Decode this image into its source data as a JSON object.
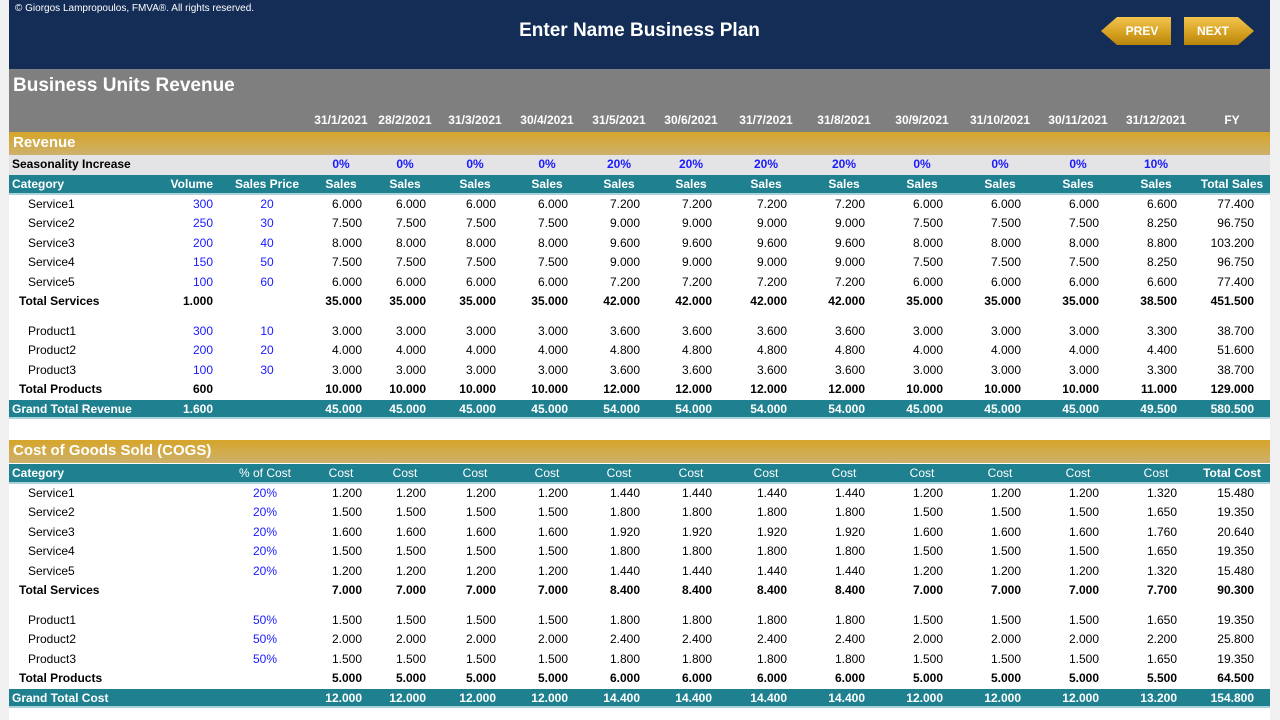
{
  "header": {
    "copyright": "© Giorgos Lampropoulos, FMVA®. All rights reserved.",
    "title": "Enter Name Business Plan",
    "prev_label": "PREV",
    "next_label": "NEXT"
  },
  "page_title": "Business Units Revenue",
  "dates": [
    "31/1/2021",
    "28/2/2021",
    "31/3/2021",
    "30/4/2021",
    "31/5/2021",
    "30/6/2021",
    "31/7/2021",
    "31/8/2021",
    "30/9/2021",
    "31/10/2021",
    "30/11/2021",
    "31/12/2021"
  ],
  "fy_label": "FY",
  "colors": {
    "navy": "#132d56",
    "gray": "#7f7f7f",
    "gold": "#d6a52a",
    "teal": "#1f8090",
    "input_blue": "#1a1aff"
  },
  "revenue": {
    "section_label": "Revenue",
    "seasonality_label": "Seasonality Increase",
    "seasonality": [
      "0%",
      "0%",
      "0%",
      "0%",
      "20%",
      "20%",
      "20%",
      "20%",
      "0%",
      "0%",
      "0%",
      "10%"
    ],
    "header": {
      "category": "Category",
      "volume": "Volume",
      "price": "Sales Price",
      "month": "Sales",
      "total": "Total Sales"
    },
    "services": [
      {
        "name": "Service1",
        "volume": "300",
        "price": "20",
        "values": [
          "6.000",
          "6.000",
          "6.000",
          "6.000",
          "7.200",
          "7.200",
          "7.200",
          "7.200",
          "6.000",
          "6.000",
          "6.000",
          "6.600"
        ],
        "total": "77.400"
      },
      {
        "name": "Service2",
        "volume": "250",
        "price": "30",
        "values": [
          "7.500",
          "7.500",
          "7.500",
          "7.500",
          "9.000",
          "9.000",
          "9.000",
          "9.000",
          "7.500",
          "7.500",
          "7.500",
          "8.250"
        ],
        "total": "96.750"
      },
      {
        "name": "Service3",
        "volume": "200",
        "price": "40",
        "values": [
          "8.000",
          "8.000",
          "8.000",
          "8.000",
          "9.600",
          "9.600",
          "9.600",
          "9.600",
          "8.000",
          "8.000",
          "8.000",
          "8.800"
        ],
        "total": "103.200"
      },
      {
        "name": "Service4",
        "volume": "150",
        "price": "50",
        "values": [
          "7.500",
          "7.500",
          "7.500",
          "7.500",
          "9.000",
          "9.000",
          "9.000",
          "9.000",
          "7.500",
          "7.500",
          "7.500",
          "8.250"
        ],
        "total": "96.750"
      },
      {
        "name": "Service5",
        "volume": "100",
        "price": "60",
        "values": [
          "6.000",
          "6.000",
          "6.000",
          "6.000",
          "7.200",
          "7.200",
          "7.200",
          "7.200",
          "6.000",
          "6.000",
          "6.000",
          "6.600"
        ],
        "total": "77.400"
      }
    ],
    "total_services": {
      "name": "Total Services",
      "volume": "1.000",
      "values": [
        "35.000",
        "35.000",
        "35.000",
        "35.000",
        "42.000",
        "42.000",
        "42.000",
        "42.000",
        "35.000",
        "35.000",
        "35.000",
        "38.500"
      ],
      "total": "451.500"
    },
    "products": [
      {
        "name": "Product1",
        "volume": "300",
        "price": "10",
        "values": [
          "3.000",
          "3.000",
          "3.000",
          "3.000",
          "3.600",
          "3.600",
          "3.600",
          "3.600",
          "3.000",
          "3.000",
          "3.000",
          "3.300"
        ],
        "total": "38.700"
      },
      {
        "name": "Product2",
        "volume": "200",
        "price": "20",
        "values": [
          "4.000",
          "4.000",
          "4.000",
          "4.000",
          "4.800",
          "4.800",
          "4.800",
          "4.800",
          "4.000",
          "4.000",
          "4.000",
          "4.400"
        ],
        "total": "51.600"
      },
      {
        "name": "Product3",
        "volume": "100",
        "price": "30",
        "values": [
          "3.000",
          "3.000",
          "3.000",
          "3.000",
          "3.600",
          "3.600",
          "3.600",
          "3.600",
          "3.000",
          "3.000",
          "3.000",
          "3.300"
        ],
        "total": "38.700"
      }
    ],
    "total_products": {
      "name": "Total Products",
      "volume": "600",
      "values": [
        "10.000",
        "10.000",
        "10.000",
        "10.000",
        "12.000",
        "12.000",
        "12.000",
        "12.000",
        "10.000",
        "10.000",
        "10.000",
        "11.000"
      ],
      "total": "129.000"
    },
    "grand_total": {
      "name": "Grand Total Revenue",
      "volume": "1.600",
      "values": [
        "45.000",
        "45.000",
        "45.000",
        "45.000",
        "54.000",
        "54.000",
        "54.000",
        "54.000",
        "45.000",
        "45.000",
        "45.000",
        "49.500"
      ],
      "total": "580.500"
    }
  },
  "cogs": {
    "section_label": "Cost of Goods Sold (COGS)",
    "header": {
      "category": "Category",
      "pct": "% of Cost",
      "month": "Cost",
      "total": "Total Cost"
    },
    "services": [
      {
        "name": "Service1",
        "pct": "20%",
        "values": [
          "1.200",
          "1.200",
          "1.200",
          "1.200",
          "1.440",
          "1.440",
          "1.440",
          "1.440",
          "1.200",
          "1.200",
          "1.200",
          "1.320"
        ],
        "total": "15.480"
      },
      {
        "name": "Service2",
        "pct": "20%",
        "values": [
          "1.500",
          "1.500",
          "1.500",
          "1.500",
          "1.800",
          "1.800",
          "1.800",
          "1.800",
          "1.500",
          "1.500",
          "1.500",
          "1.650"
        ],
        "total": "19.350"
      },
      {
        "name": "Service3",
        "pct": "20%",
        "values": [
          "1.600",
          "1.600",
          "1.600",
          "1.600",
          "1.920",
          "1.920",
          "1.920",
          "1.920",
          "1.600",
          "1.600",
          "1.600",
          "1.760"
        ],
        "total": "20.640"
      },
      {
        "name": "Service4",
        "pct": "20%",
        "values": [
          "1.500",
          "1.500",
          "1.500",
          "1.500",
          "1.800",
          "1.800",
          "1.800",
          "1.800",
          "1.500",
          "1.500",
          "1.500",
          "1.650"
        ],
        "total": "19.350"
      },
      {
        "name": "Service5",
        "pct": "20%",
        "values": [
          "1.200",
          "1.200",
          "1.200",
          "1.200",
          "1.440",
          "1.440",
          "1.440",
          "1.440",
          "1.200",
          "1.200",
          "1.200",
          "1.320"
        ],
        "total": "15.480"
      }
    ],
    "total_services": {
      "name": "Total Services",
      "values": [
        "7.000",
        "7.000",
        "7.000",
        "7.000",
        "8.400",
        "8.400",
        "8.400",
        "8.400",
        "7.000",
        "7.000",
        "7.000",
        "7.700"
      ],
      "total": "90.300"
    },
    "products": [
      {
        "name": "Product1",
        "pct": "50%",
        "values": [
          "1.500",
          "1.500",
          "1.500",
          "1.500",
          "1.800",
          "1.800",
          "1.800",
          "1.800",
          "1.500",
          "1.500",
          "1.500",
          "1.650"
        ],
        "total": "19.350"
      },
      {
        "name": "Product2",
        "pct": "50%",
        "values": [
          "2.000",
          "2.000",
          "2.000",
          "2.000",
          "2.400",
          "2.400",
          "2.400",
          "2.400",
          "2.000",
          "2.000",
          "2.000",
          "2.200"
        ],
        "total": "25.800"
      },
      {
        "name": "Product3",
        "pct": "50%",
        "values": [
          "1.500",
          "1.500",
          "1.500",
          "1.500",
          "1.800",
          "1.800",
          "1.800",
          "1.800",
          "1.500",
          "1.500",
          "1.500",
          "1.650"
        ],
        "total": "19.350"
      }
    ],
    "total_products": {
      "name": "Total Products",
      "values": [
        "5.000",
        "5.000",
        "5.000",
        "5.000",
        "6.000",
        "6.000",
        "6.000",
        "6.000",
        "5.000",
        "5.000",
        "5.000",
        "5.500"
      ],
      "total": "64.500"
    },
    "grand_total": {
      "name": "Grand Total Cost",
      "values": [
        "12.000",
        "12.000",
        "12.000",
        "12.000",
        "14.400",
        "14.400",
        "14.400",
        "14.400",
        "12.000",
        "12.000",
        "12.000",
        "13.200"
      ],
      "total": "154.800"
    }
  }
}
